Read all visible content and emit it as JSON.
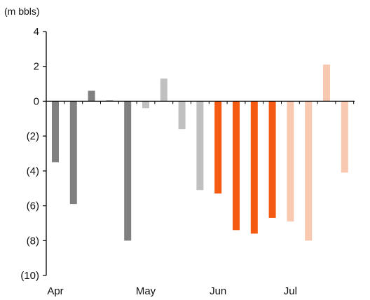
{
  "chart_data": {
    "type": "bar",
    "unit_label": "(m  bbls)",
    "title": "",
    "xlabel": "",
    "ylabel": "(m  bbls)",
    "ylim": [
      -10,
      4
    ],
    "yticks": [
      4,
      2,
      0,
      -2,
      -4,
      -6,
      -8,
      -10
    ],
    "ytick_labels": [
      "4",
      "2",
      "0",
      "(2)",
      "(4)",
      "(6)",
      "(8)",
      "(10)"
    ],
    "x_month_labels": [
      "Apr",
      "May",
      "Jun",
      "Jul"
    ],
    "x_month_label_bar_index": [
      0,
      5,
      9,
      13
    ],
    "grid": false,
    "legend": "none",
    "colors": {
      "dark_grey": "#808080",
      "light_grey": "#c0c0c0",
      "orange": "#f45a12",
      "light_orange": "#f9c8b0",
      "axis": "#000000"
    },
    "values": [
      -3.5,
      -5.9,
      0.6,
      0.05,
      -8.0,
      -0.4,
      1.3,
      -1.6,
      -5.1,
      -5.3,
      -7.4,
      -7.6,
      -6.7,
      -6.9,
      -8.0,
      2.1,
      -4.1
    ],
    "bar_colors": [
      "dark_grey",
      "dark_grey",
      "dark_grey",
      "dark_grey",
      "dark_grey",
      "light_grey",
      "light_grey",
      "light_grey",
      "light_grey",
      "orange",
      "orange",
      "orange",
      "orange",
      "light_orange",
      "light_orange",
      "light_orange",
      "light_orange"
    ]
  }
}
